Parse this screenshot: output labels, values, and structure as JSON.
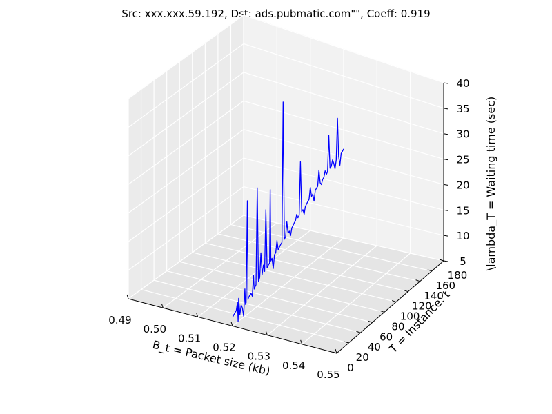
{
  "chart_data": {
    "type": "line",
    "projection": "3d",
    "title": "Src: xxx.xxx.59.192, Dst: ads.pubmatic.com\"\", Coeff: 0.919",
    "xlabel": "B_t = Packet size (kb)",
    "ylabel": "T = Instance: t",
    "zlabel": "\\lambda_T = Waiting time (sec)",
    "xlim": [
      0.49,
      0.55
    ],
    "ylim": [
      0,
      180
    ],
    "zlim": [
      5,
      40
    ],
    "x_ticks": [
      "0.49",
      "0.50",
      "0.51",
      "0.52",
      "0.53",
      "0.54",
      "0.55"
    ],
    "y_ticks": [
      "0",
      "20",
      "40",
      "60",
      "80",
      "100",
      "120",
      "140",
      "160",
      "180"
    ],
    "z_ticks": [
      "5",
      "10",
      "15",
      "20",
      "25",
      "30",
      "35",
      "40"
    ],
    "grid": true,
    "color": "#0000ff",
    "series": [
      {
        "x_constant": 0.52,
        "t": [
          0,
          2,
          4,
          6,
          8,
          9,
          10,
          12,
          14,
          16,
          18,
          20,
          21,
          22,
          24,
          25,
          26,
          28,
          30,
          32,
          34,
          35,
          36,
          38,
          40,
          42,
          43,
          44,
          46,
          48,
          50,
          52,
          54,
          56,
          58,
          60,
          61,
          62,
          64,
          66,
          68,
          70,
          72,
          74,
          76,
          78,
          80,
          82,
          84,
          86,
          88,
          90,
          92,
          94,
          96,
          98,
          100,
          102,
          104,
          106,
          108,
          110,
          112,
          114,
          116,
          118,
          120,
          122,
          124,
          126,
          128,
          130,
          132,
          134,
          136,
          138,
          140,
          142,
          144,
          146,
          148,
          150,
          152,
          154,
          156,
          158,
          160,
          162,
          164,
          166,
          168,
          170,
          172,
          174,
          176,
          178,
          180
        ],
        "z": [
          6.5,
          6.8,
          7.0,
          7.2,
          8.5,
          5.0,
          9.0,
          6.0,
          7.5,
          6.8,
          5.2,
          9.8,
          7.0,
          7.2,
          25.0,
          7.5,
          7.8,
          8.0,
          8.2,
          7.5,
          11.0,
          8.5,
          8.7,
          9.0,
          26.0,
          9.2,
          9.5,
          9.8,
          14.0,
          10.0,
          11.5,
          10.2,
          21.0,
          10.5,
          10.8,
          11.0,
          24.0,
          11.2,
          11.5,
          9.5,
          11.8,
          12.0,
          14.0,
          12.2,
          12.5,
          12.8,
          13.0,
          38.0,
          13.2,
          13.5,
          16.0,
          13.8,
          14.0,
          13.0,
          14.2,
          14.5,
          14.8,
          15.0,
          16.0,
          15.2,
          15.5,
          25.0,
          15.8,
          16.0,
          15.0,
          16.2,
          16.5,
          16.8,
          17.0,
          19.0,
          17.2,
          17.5,
          16.0,
          17.8,
          18.0,
          18.2,
          21.0,
          18.5,
          18.0,
          18.8,
          19.0,
          20.0,
          19.2,
          19.5,
          26.0,
          19.8,
          20.0,
          21.0,
          20.2,
          19.0,
          20.5,
          28.0,
          20.8,
          19.0,
          21.0,
          21.2,
          21.5
        ]
      }
    ]
  }
}
